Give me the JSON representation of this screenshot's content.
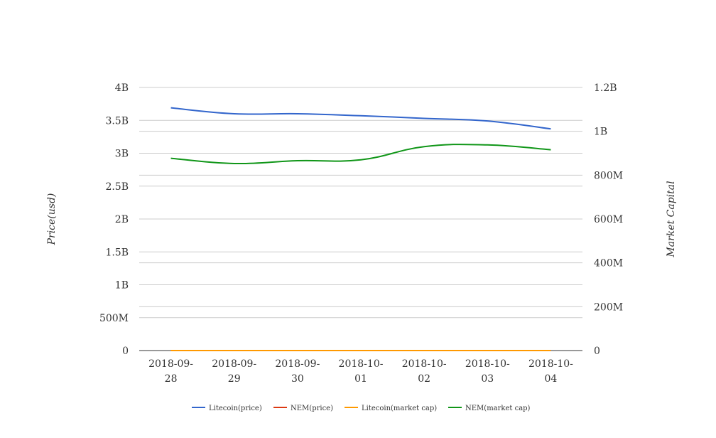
{
  "chart_data": {
    "type": "line",
    "categories": [
      "2018-09-28",
      "2018-09-29",
      "2018-09-30",
      "2018-10-01",
      "2018-10-02",
      "2018-10-03",
      "2018-10-04"
    ],
    "category_lines": [
      [
        "2018-09-",
        "28"
      ],
      [
        "2018-09-",
        "29"
      ],
      [
        "2018-09-",
        "30"
      ],
      [
        "2018-10-",
        "01"
      ],
      [
        "2018-10-",
        "02"
      ],
      [
        "2018-10-",
        "03"
      ],
      [
        "2018-10-",
        "04"
      ]
    ],
    "ylabel_left": "Price(usd)",
    "ylabel_right": "Market Capital",
    "ylim_left": [
      0,
      4000000000
    ],
    "ylim_right": [
      0,
      1200000000
    ],
    "yticks_left": [
      "0",
      "500M",
      "1B",
      "1.5B",
      "2B",
      "2.5B",
      "3B",
      "3.5B",
      "4B"
    ],
    "yticks_right": [
      "0",
      "200M",
      "400M",
      "600M",
      "800M",
      "1B",
      "1.2B"
    ],
    "grid": true,
    "legend_position": "bottom",
    "series": [
      {
        "name": "Litecoin(price)",
        "axis": "left",
        "color": "#3366cc",
        "values": [
          3690000000,
          3600000000,
          3600000000,
          3570000000,
          3530000000,
          3490000000,
          3370000000
        ]
      },
      {
        "name": "NEM(price)",
        "axis": "left",
        "color": "#dc3912",
        "values": [
          0,
          0,
          0,
          0,
          0,
          0,
          0
        ]
      },
      {
        "name": "Litecoin(market cap)",
        "axis": "right",
        "color": "#ff9900",
        "values": [
          0,
          0,
          0,
          0,
          0,
          0,
          0
        ]
      },
      {
        "name": "NEM(market cap)",
        "axis": "right",
        "color": "#109618",
        "values": [
          877000000,
          853000000,
          866000000,
          870000000,
          930000000,
          938000000,
          916000000
        ]
      }
    ]
  }
}
